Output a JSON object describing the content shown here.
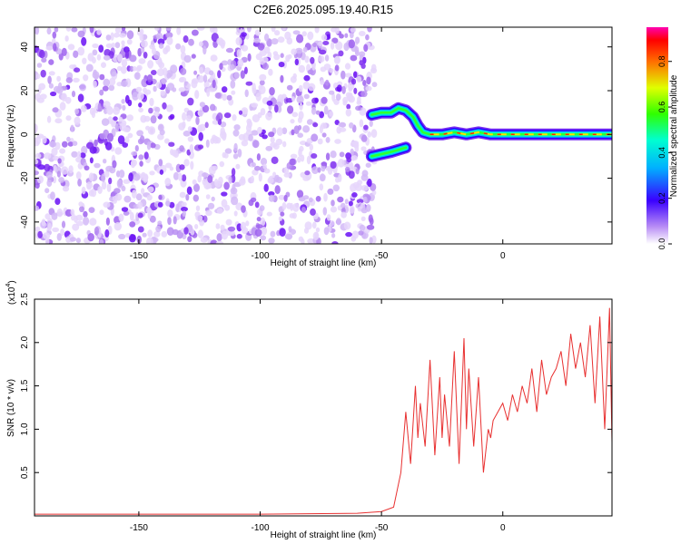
{
  "chart_data": [
    {
      "type": "heatmap",
      "title": "C2E6.2025.095.19.40.R15",
      "xlabel": "Height of straight line (km)",
      "ylabel": "Frequency (Hz)",
      "xlim": [
        -193,
        45
      ],
      "ylim": [
        -50,
        49
      ],
      "x_ticks": [
        -150,
        -100,
        -50,
        0
      ],
      "x_tick_labels": [
        "-150",
        "-100",
        "-50",
        "0"
      ],
      "y_ticks": [
        -40,
        -20,
        0,
        20,
        40
      ],
      "y_tick_labels": [
        "-40",
        "-20",
        "0",
        "20",
        "40"
      ],
      "noise_region": {
        "x_range": [
          -193,
          -55
        ],
        "freq_range": [
          -50,
          49
        ]
      },
      "signal_trace": {
        "x": [
          -54,
          -50,
          -46,
          -43,
          -40,
          -37,
          -35,
          -33,
          -30,
          -25,
          -20,
          -15,
          -10,
          -5,
          0,
          5,
          10,
          20,
          30,
          40,
          45
        ],
        "freq": [
          9,
          10,
          10,
          12,
          11,
          8,
          4,
          1,
          0,
          0,
          1,
          0,
          1,
          0,
          0,
          0,
          0,
          0,
          0,
          0,
          0
        ]
      },
      "lower_branch": {
        "x": [
          -54,
          -50,
          -46,
          -43,
          -40
        ],
        "freq": [
          -10,
          -9,
          -8,
          -7,
          -6
        ]
      },
      "colorbar": {
        "label": "Normalized spectral amplitude",
        "range": [
          0.0,
          0.95
        ],
        "ticks": [
          0.0,
          0.2,
          0.4,
          0.6,
          0.8
        ],
        "tick_labels": [
          "0.0",
          "0.2",
          "0.4",
          "0.6",
          "0.8"
        ],
        "colors": [
          "#ffffff",
          "#9b5cf0",
          "#1a00ff",
          "#00d0ff",
          "#00ff40",
          "#f0ff00",
          "#ff8000",
          "#ff0000",
          "#ff00a0"
        ]
      }
    },
    {
      "type": "line",
      "xlabel": "Height of straight line (km)",
      "ylabel": "SNR (10 * v/v)",
      "y_multiplier": "(x10",
      "y_multiplier_exp": "4",
      "y_multiplier_close": ")",
      "xlim": [
        -193,
        45
      ],
      "ylim": [
        0,
        2.5
      ],
      "x_ticks": [
        -150,
        -100,
        -50,
        0
      ],
      "x_tick_labels": [
        "-150",
        "-100",
        "-50",
        "0"
      ],
      "y_ticks": [
        0.5,
        1.0,
        1.5,
        2.0,
        2.5
      ],
      "y_tick_labels": [
        "0.5",
        "1.0",
        "1.5",
        "2.0",
        "2.5"
      ],
      "line_color": "#e83030",
      "series": [
        {
          "x": [
            -193,
            -150,
            -100,
            -60,
            -50,
            -45,
            -42,
            -40,
            -38,
            -36,
            -35,
            -34,
            -32,
            -30,
            -28,
            -26,
            -25,
            -24,
            -22,
            -20,
            -18,
            -16,
            -15,
            -14,
            -12,
            -10,
            -8,
            -6,
            -5,
            -4,
            -2,
            0,
            2,
            4,
            6,
            8,
            10,
            12,
            14,
            16,
            18,
            20,
            22,
            24,
            26,
            28,
            30,
            32,
            34,
            36,
            38,
            40,
            42,
            44,
            45
          ],
          "values": [
            0.02,
            0.02,
            0.02,
            0.03,
            0.05,
            0.1,
            0.5,
            1.2,
            0.6,
            1.5,
            0.9,
            1.3,
            0.8,
            1.8,
            0.7,
            1.6,
            0.9,
            1.4,
            0.8,
            1.9,
            0.6,
            2.05,
            1.0,
            1.7,
            0.8,
            1.6,
            0.5,
            1.0,
            0.9,
            1.1,
            1.2,
            1.3,
            1.1,
            1.4,
            1.2,
            1.5,
            1.3,
            1.7,
            1.2,
            1.8,
            1.4,
            1.6,
            1.7,
            1.9,
            1.5,
            2.1,
            1.7,
            2.0,
            1.6,
            2.2,
            1.3,
            2.3,
            1.0,
            2.4,
            0.85
          ]
        }
      ]
    }
  ]
}
